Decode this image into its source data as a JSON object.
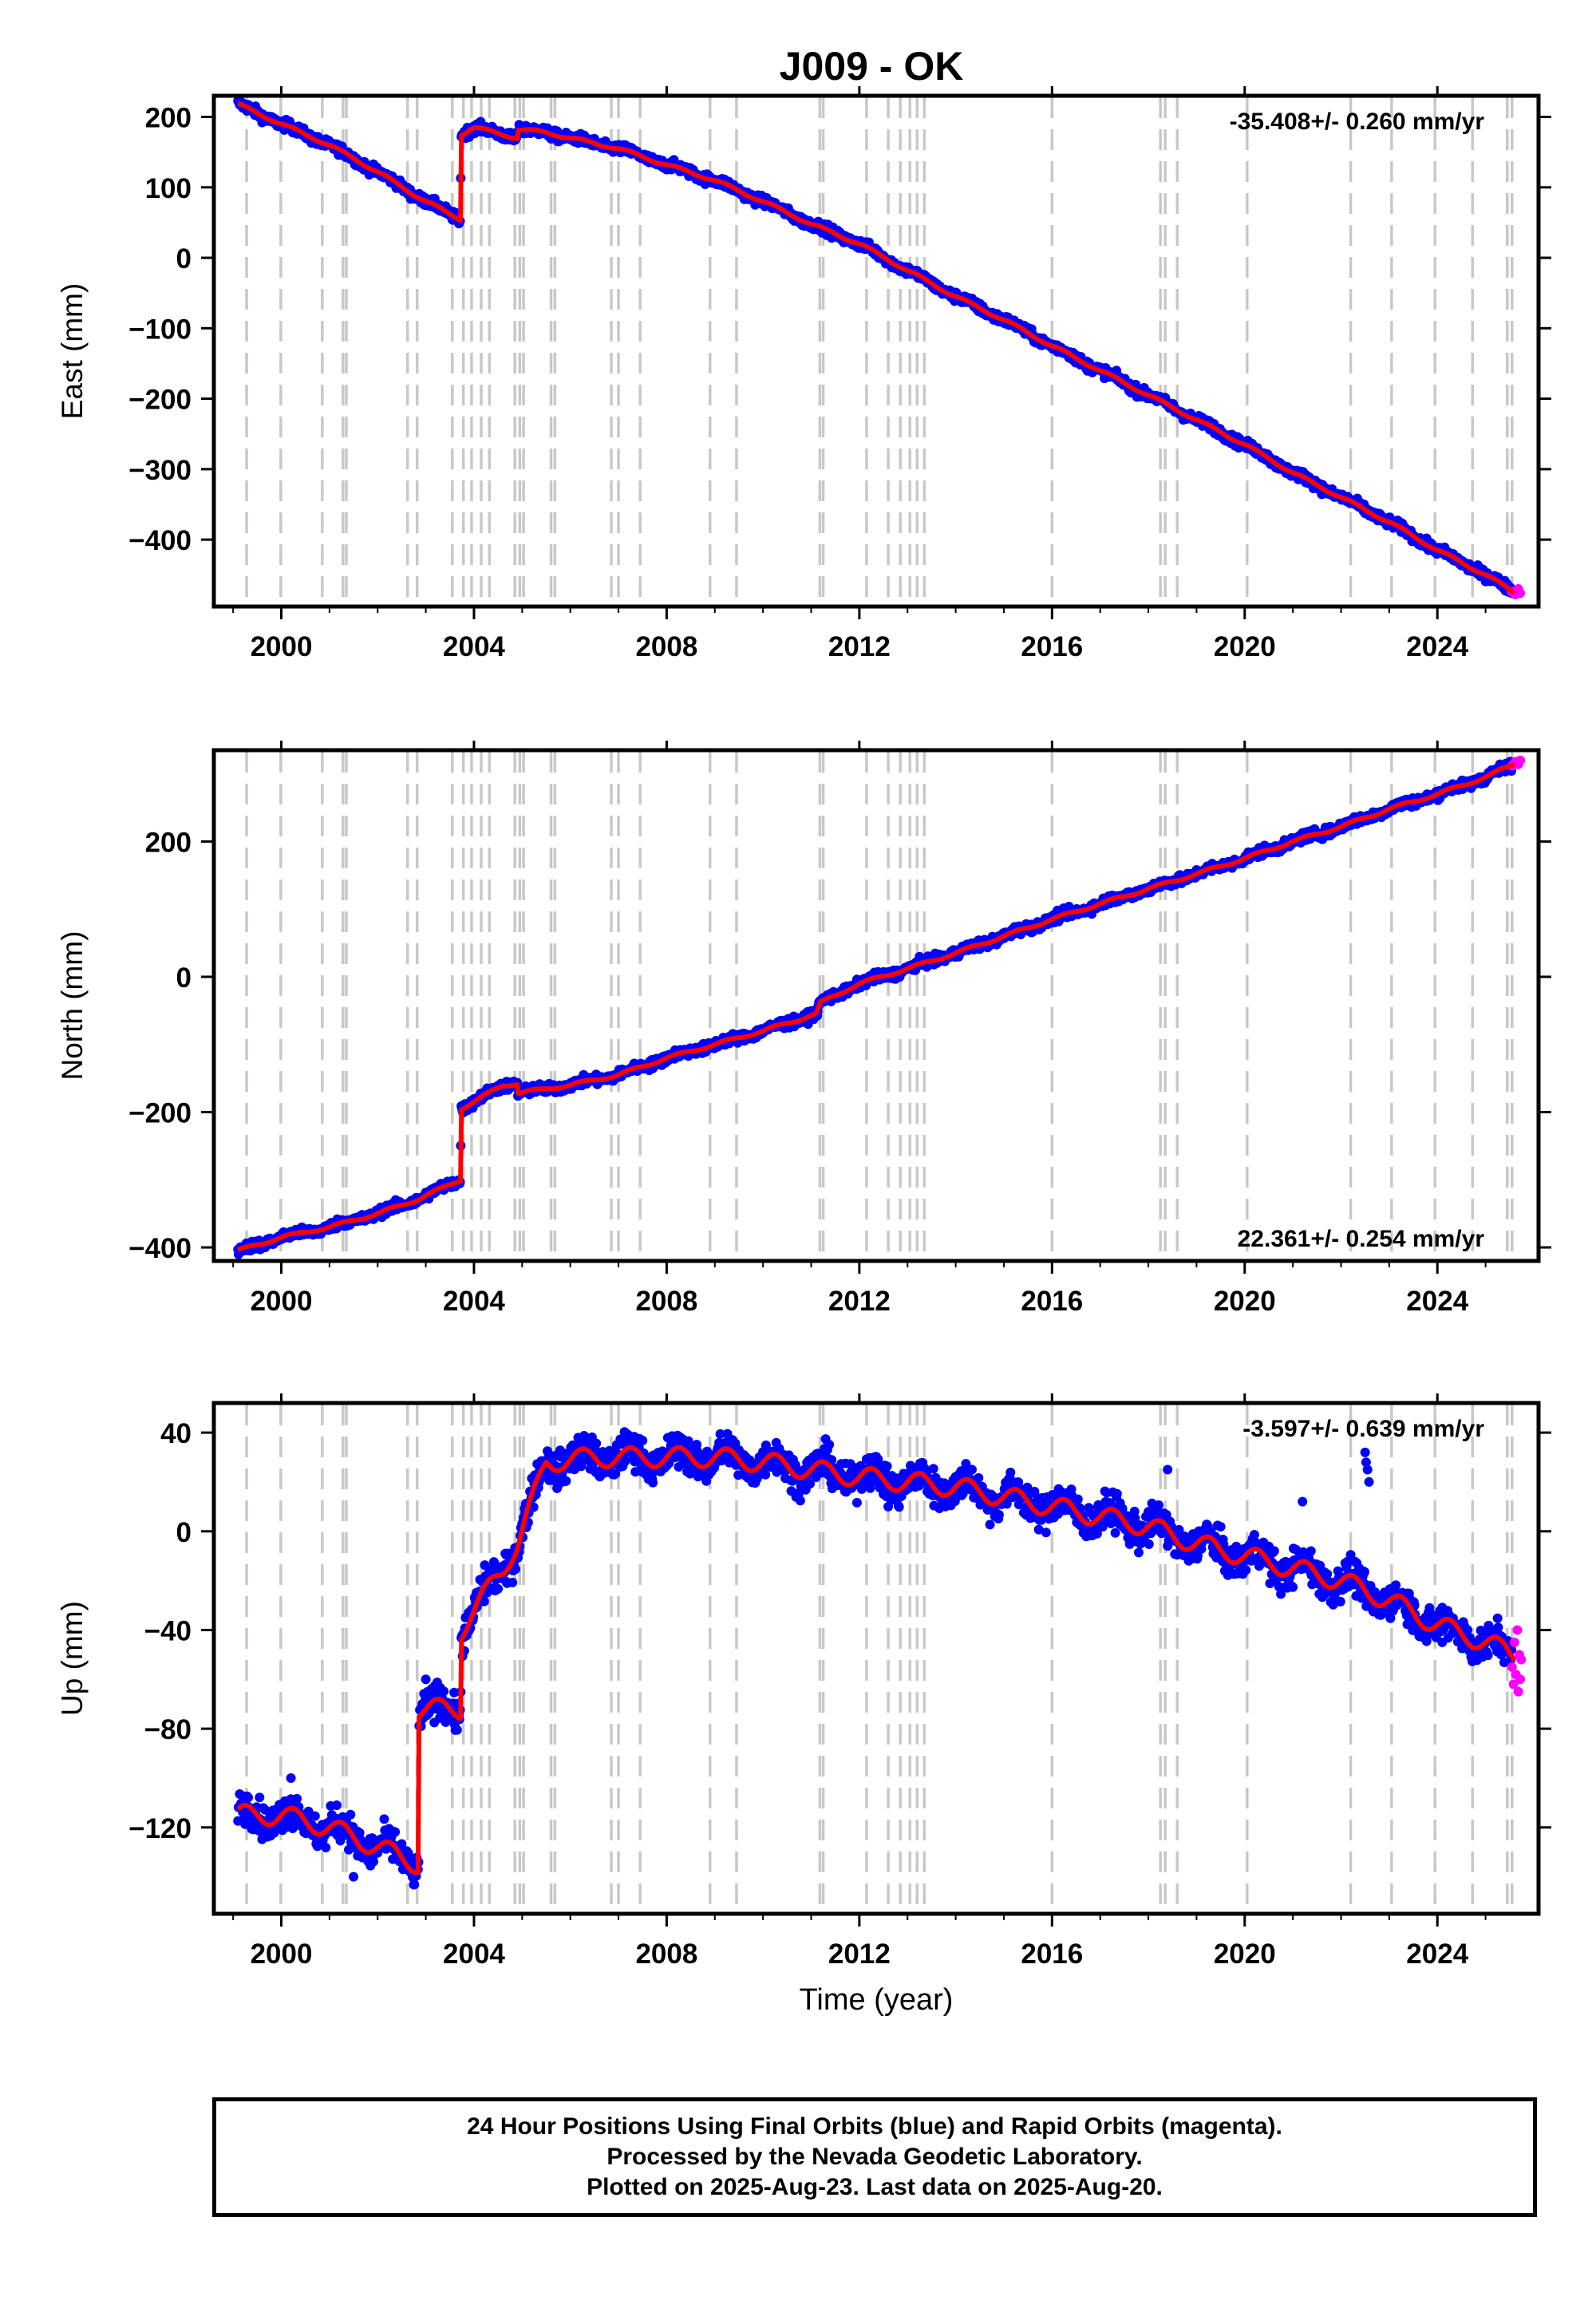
{
  "title": "J009 - OK",
  "footer": {
    "line1": "24 Hour Positions Using Final Orbits (blue) and Rapid Orbits (magenta).",
    "line2": "Processed by the Nevada Geodetic Laboratory.",
    "line3": "Plotted on 2025-Aug-23. Last data on 2025-Aug-20."
  },
  "colors": {
    "final": "#0000ff",
    "rapid": "#ff00ff",
    "model": "#ff0000",
    "event": "#c8c8c8"
  },
  "event_lines": [
    1999.28,
    1999.99,
    2000.85,
    2001.28,
    2001.35,
    2002.62,
    2002.82,
    2003.55,
    2003.78,
    2003.95,
    2004.15,
    2004.32,
    2004.85,
    2004.95,
    2005.03,
    2005.6,
    2005.68,
    2006.85,
    2007.0,
    2007.45,
    2008.9,
    2009.45,
    2011.18,
    2011.25,
    2012.15,
    2012.6,
    2012.85,
    2013.05,
    2013.2,
    2013.35,
    2016.0,
    2018.25,
    2018.35,
    2018.6,
    2020.05,
    2022.2,
    2023.05,
    2023.95,
    2024.73,
    2025.45,
    2025.55
  ],
  "chart_data": [
    {
      "type": "scatter",
      "xlabel": "",
      "ylabel": "East (mm)",
      "xlim": [
        1998.6,
        2026.1
      ],
      "ylim": [
        -495,
        230
      ],
      "xticks": [
        "2000",
        "2004",
        "2008",
        "2012",
        "2016",
        "2020",
        "2024"
      ],
      "xtick_values": [
        2000,
        2004,
        2008,
        2012,
        2016,
        2020,
        2024
      ],
      "yticks": [
        "200",
        "100",
        "0",
        "−100",
        "−200",
        "−300",
        "−400"
      ],
      "ytick_values": [
        200,
        100,
        0,
        -100,
        -200,
        -300,
        -400
      ],
      "rate_label": "-35.408+/- 0.260 mm/yr",
      "rate_position": "top-right",
      "model": [
        [
          1999.1,
          218
        ],
        [
          2000.0,
          190
        ],
        [
          2001.0,
          160
        ],
        [
          2002.0,
          122
        ],
        [
          2002.8,
          88
        ],
        [
          2003.5,
          62
        ],
        [
          2003.72,
          55
        ],
        [
          2003.73,
          175
        ],
        [
          2004.0,
          185
        ],
        [
          2004.3,
          180
        ],
        [
          2004.9,
          170
        ],
        [
          2004.91,
          182
        ],
        [
          2005.5,
          178
        ],
        [
          2006.0,
          170
        ],
        [
          2007.0,
          155
        ],
        [
          2008.0,
          132
        ],
        [
          2009.0,
          110
        ],
        [
          2010.0,
          80
        ],
        [
          2011.0,
          48
        ],
        [
          2012.0,
          20
        ],
        [
          2013.0,
          -18
        ],
        [
          2014.0,
          -55
        ],
        [
          2015.0,
          -88
        ],
        [
          2016.0,
          -125
        ],
        [
          2017.0,
          -160
        ],
        [
          2018.0,
          -195
        ],
        [
          2019.0,
          -230
        ],
        [
          2020.0,
          -265
        ],
        [
          2021.0,
          -305
        ],
        [
          2022.0,
          -340
        ],
        [
          2023.0,
          -375
        ],
        [
          2024.0,
          -415
        ],
        [
          2025.0,
          -450
        ],
        [
          2025.6,
          -475
        ]
      ],
      "rapid": [
        [
          2025.55,
          -474
        ],
        [
          2025.62,
          -478
        ],
        [
          2025.68,
          -470
        ],
        [
          2025.72,
          -476
        ]
      ],
      "noise": 5,
      "seasonal": 2
    },
    {
      "type": "scatter",
      "xlabel": "",
      "ylabel": "North (mm)",
      "xlim": [
        1998.6,
        2026.1
      ],
      "ylim": [
        -420,
        335
      ],
      "xticks": [
        "2000",
        "2004",
        "2008",
        "2012",
        "2016",
        "2020",
        "2024"
      ],
      "xtick_values": [
        2000,
        2004,
        2008,
        2012,
        2016,
        2020,
        2024
      ],
      "yticks": [
        "200",
        "0",
        "−200",
        "−400"
      ],
      "ytick_values": [
        200,
        0,
        -200,
        -400
      ],
      "rate_label": "22.361+/- 0.254 mm/yr",
      "rate_position": "bottom-right",
      "model": [
        [
          1999.1,
          -405
        ],
        [
          2000.0,
          -385
        ],
        [
          2001.0,
          -370
        ],
        [
          2002.0,
          -350
        ],
        [
          2002.8,
          -330
        ],
        [
          2003.72,
          -300
        ],
        [
          2003.73,
          -195
        ],
        [
          2004.0,
          -185
        ],
        [
          2004.6,
          -160
        ],
        [
          2004.9,
          -158
        ],
        [
          2004.91,
          -172
        ],
        [
          2006.0,
          -160
        ],
        [
          2007.0,
          -145
        ],
        [
          2008.0,
          -120
        ],
        [
          2009.0,
          -100
        ],
        [
          2010.0,
          -80
        ],
        [
          2011.1,
          -55
        ],
        [
          2011.2,
          -38
        ],
        [
          2012.0,
          -10
        ],
        [
          2013.0,
          12
        ],
        [
          2014.0,
          35
        ],
        [
          2015.0,
          60
        ],
        [
          2016.0,
          85
        ],
        [
          2017.0,
          108
        ],
        [
          2018.0,
          130
        ],
        [
          2019.0,
          152
        ],
        [
          2020.0,
          175
        ],
        [
          2021.0,
          200
        ],
        [
          2022.0,
          222
        ],
        [
          2023.0,
          248
        ],
        [
          2024.0,
          270
        ],
        [
          2025.0,
          295
        ],
        [
          2025.6,
          315
        ]
      ],
      "rapid": [
        [
          2025.55,
          312
        ],
        [
          2025.62,
          318
        ],
        [
          2025.68,
          314
        ],
        [
          2025.72,
          320
        ]
      ],
      "noise": 5,
      "seasonal": 2
    },
    {
      "type": "scatter",
      "xlabel": "Time (year)",
      "ylabel": "Up (mm)",
      "xlim": [
        1998.6,
        2026.1
      ],
      "ylim": [
        -155,
        52
      ],
      "xticks": [
        "2000",
        "2004",
        "2008",
        "2012",
        "2016",
        "2020",
        "2024"
      ],
      "xtick_values": [
        2000,
        2004,
        2008,
        2012,
        2016,
        2020,
        2024
      ],
      "yticks": [
        "40",
        "0",
        "−40",
        "−80",
        "−120"
      ],
      "ytick_values": [
        40,
        0,
        -40,
        -80,
        -120
      ],
      "rate_label": "-3.597+/- 0.639 mm/yr",
      "rate_position": "top-right",
      "model": [
        [
          1999.1,
          -115
        ],
        [
          2000.0,
          -115
        ],
        [
          2001.0,
          -120
        ],
        [
          2002.0,
          -128
        ],
        [
          2002.85,
          -135
        ],
        [
          2002.86,
          -72
        ],
        [
          2003.72,
          -72
        ],
        [
          2003.73,
          -40
        ],
        [
          2004.6,
          -15
        ],
        [
          2004.9,
          -5
        ],
        [
          2005.5,
          28
        ],
        [
          2006.5,
          30
        ],
        [
          2008.0,
          30
        ],
        [
          2009.0,
          30
        ],
        [
          2010.0,
          28
        ],
        [
          2011.0,
          25
        ],
        [
          2012.0,
          22
        ],
        [
          2013.0,
          20
        ],
        [
          2014.0,
          18
        ],
        [
          2015.0,
          14
        ],
        [
          2016.0,
          10
        ],
        [
          2017.0,
          6
        ],
        [
          2018.0,
          2
        ],
        [
          2019.0,
          -5
        ],
        [
          2020.0,
          -10
        ],
        [
          2021.0,
          -15
        ],
        [
          2022.0,
          -20
        ],
        [
          2023.0,
          -28
        ],
        [
          2024.0,
          -38
        ],
        [
          2025.0,
          -45
        ],
        [
          2025.6,
          -50
        ]
      ],
      "rapid": [
        [
          2025.55,
          -55
        ],
        [
          2025.58,
          -62
        ],
        [
          2025.6,
          -45
        ],
        [
          2025.63,
          -58
        ],
        [
          2025.66,
          -40
        ],
        [
          2025.68,
          -65
        ],
        [
          2025.7,
          -50
        ],
        [
          2025.72,
          -60
        ],
        [
          2025.74,
          -52
        ]
      ],
      "noise": 5,
      "seasonal": 4,
      "outliers": [
        [
          2022.5,
          32
        ],
        [
          2022.52,
          28
        ],
        [
          2022.55,
          25
        ],
        [
          2022.58,
          20
        ],
        [
          2018.4,
          25
        ],
        [
          2021.2,
          12
        ],
        [
          2012.6,
          10
        ],
        [
          2003.0,
          -60
        ],
        [
          2001.5,
          -140
        ],
        [
          2000.2,
          -100
        ],
        [
          2024.1,
          -45
        ],
        [
          2025.2,
          -42
        ]
      ]
    }
  ]
}
